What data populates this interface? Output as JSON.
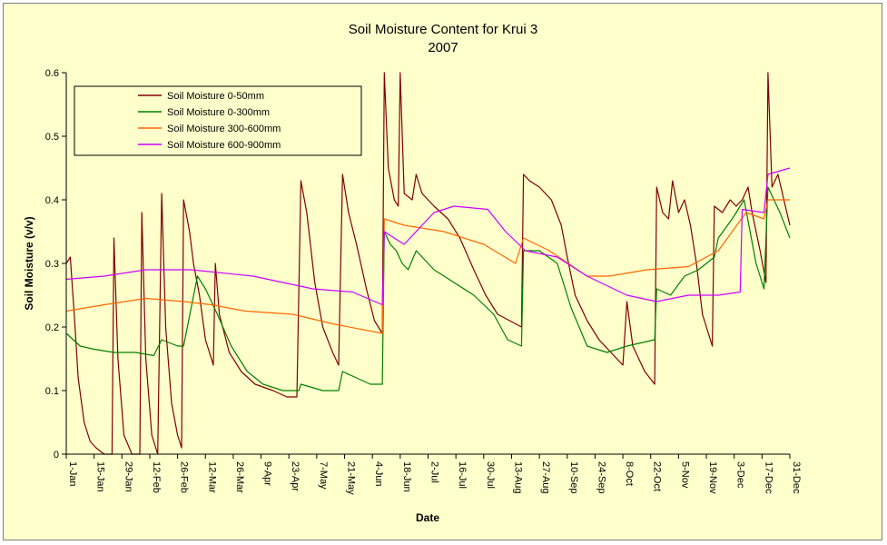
{
  "chart_data": {
    "type": "line",
    "title": "Soil Moisture Content for Krui 3",
    "subtitle": "2007",
    "xlabel": "Date",
    "ylabel": "Soil Moisture (v/v)",
    "ylim": [
      0,
      0.6
    ],
    "yticks": [
      "0",
      "0.1",
      "0.2",
      "0.3",
      "0.4",
      "0.5",
      "0.6"
    ],
    "xlim": [
      "2007-01-01",
      "2007-12-31"
    ],
    "xticks": [
      "1-Jan",
      "15-Jan",
      "29-Jan",
      "12-Feb",
      "26-Feb",
      "12-Mar",
      "26-Mar",
      "9-Apr",
      "23-Apr",
      "7-May",
      "21-May",
      "4-Jun",
      "18-Jun",
      "2-Jul",
      "16-Jul",
      "30-Jul",
      "13-Aug",
      "27-Aug",
      "10-Sep",
      "24-Sep",
      "8-Oct",
      "22-Oct",
      "5-Nov",
      "19-Nov",
      "3-Dec",
      "17-Dec",
      "31-Dec"
    ],
    "grid": false,
    "legend": "top-left",
    "series": [
      {
        "name": "Soil Moisture 0-50mm",
        "color": "#800000",
        "points": [
          [
            "2007-01-01",
            0.3
          ],
          [
            "2007-01-03",
            0.31
          ],
          [
            "2007-01-05",
            0.22
          ],
          [
            "2007-01-07",
            0.12
          ],
          [
            "2007-01-10",
            0.05
          ],
          [
            "2007-01-13",
            0.02
          ],
          [
            "2007-01-16",
            0.01
          ],
          [
            "2007-01-20",
            0.0
          ],
          [
            "2007-01-24",
            0.0
          ],
          [
            "2007-01-25",
            0.34
          ],
          [
            "2007-01-27",
            0.15
          ],
          [
            "2007-01-30",
            0.03
          ],
          [
            "2007-02-03",
            0.0
          ],
          [
            "2007-02-07",
            0.0
          ],
          [
            "2007-02-08",
            0.38
          ],
          [
            "2007-02-10",
            0.15
          ],
          [
            "2007-02-13",
            0.03
          ],
          [
            "2007-02-16",
            0.0
          ],
          [
            "2007-02-18",
            0.41
          ],
          [
            "2007-02-20",
            0.2
          ],
          [
            "2007-02-23",
            0.08
          ],
          [
            "2007-02-26",
            0.03
          ],
          [
            "2007-02-28",
            0.01
          ],
          [
            "2007-03-01",
            0.4
          ],
          [
            "2007-03-04",
            0.35
          ],
          [
            "2007-03-06",
            0.3
          ],
          [
            "2007-03-09",
            0.25
          ],
          [
            "2007-03-12",
            0.18
          ],
          [
            "2007-03-16",
            0.14
          ],
          [
            "2007-03-17",
            0.3
          ],
          [
            "2007-03-19",
            0.22
          ],
          [
            "2007-03-24",
            0.16
          ],
          [
            "2007-03-30",
            0.13
          ],
          [
            "2007-04-06",
            0.11
          ],
          [
            "2007-04-15",
            0.1
          ],
          [
            "2007-04-22",
            0.09
          ],
          [
            "2007-04-27",
            0.09
          ],
          [
            "2007-04-29",
            0.43
          ],
          [
            "2007-05-02",
            0.38
          ],
          [
            "2007-05-06",
            0.27
          ],
          [
            "2007-05-10",
            0.2
          ],
          [
            "2007-05-15",
            0.16
          ],
          [
            "2007-05-18",
            0.14
          ],
          [
            "2007-05-20",
            0.44
          ],
          [
            "2007-05-23",
            0.38
          ],
          [
            "2007-05-27",
            0.33
          ],
          [
            "2007-06-01",
            0.26
          ],
          [
            "2007-06-05",
            0.21
          ],
          [
            "2007-06-09",
            0.19
          ],
          [
            "2007-06-10",
            0.6
          ],
          [
            "2007-06-12",
            0.45
          ],
          [
            "2007-06-15",
            0.4
          ],
          [
            "2007-06-17",
            0.39
          ],
          [
            "2007-06-18",
            0.6
          ],
          [
            "2007-06-20",
            0.41
          ],
          [
            "2007-06-24",
            0.4
          ],
          [
            "2007-06-26",
            0.44
          ],
          [
            "2007-06-29",
            0.41
          ],
          [
            "2007-07-05",
            0.39
          ],
          [
            "2007-07-12",
            0.37
          ],
          [
            "2007-07-18",
            0.34
          ],
          [
            "2007-07-25",
            0.29
          ],
          [
            "2007-07-31",
            0.25
          ],
          [
            "2007-08-06",
            0.22
          ],
          [
            "2007-08-12",
            0.21
          ],
          [
            "2007-08-18",
            0.2
          ],
          [
            "2007-08-19",
            0.44
          ],
          [
            "2007-08-22",
            0.43
          ],
          [
            "2007-08-27",
            0.42
          ],
          [
            "2007-09-02",
            0.4
          ],
          [
            "2007-09-07",
            0.36
          ],
          [
            "2007-09-10",
            0.31
          ],
          [
            "2007-09-14",
            0.25
          ],
          [
            "2007-09-20",
            0.21
          ],
          [
            "2007-09-26",
            0.18
          ],
          [
            "2007-10-02",
            0.16
          ],
          [
            "2007-10-08",
            0.14
          ],
          [
            "2007-10-10",
            0.24
          ],
          [
            "2007-10-13",
            0.17
          ],
          [
            "2007-10-19",
            0.13
          ],
          [
            "2007-10-24",
            0.11
          ],
          [
            "2007-10-25",
            0.42
          ],
          [
            "2007-10-28",
            0.38
          ],
          [
            "2007-10-31",
            0.37
          ],
          [
            "2007-11-02",
            0.43
          ],
          [
            "2007-11-05",
            0.38
          ],
          [
            "2007-11-08",
            0.4
          ],
          [
            "2007-11-11",
            0.36
          ],
          [
            "2007-11-14",
            0.3
          ],
          [
            "2007-11-17",
            0.22
          ],
          [
            "2007-11-22",
            0.17
          ],
          [
            "2007-11-23",
            0.39
          ],
          [
            "2007-11-27",
            0.38
          ],
          [
            "2007-12-01",
            0.4
          ],
          [
            "2007-12-04",
            0.39
          ],
          [
            "2007-12-07",
            0.4
          ],
          [
            "2007-12-10",
            0.42
          ],
          [
            "2007-12-12",
            0.38
          ],
          [
            "2007-12-16",
            0.32
          ],
          [
            "2007-12-19",
            0.27
          ],
          [
            "2007-12-20",
            0.6
          ],
          [
            "2007-12-22",
            0.42
          ],
          [
            "2007-12-25",
            0.44
          ],
          [
            "2007-12-28",
            0.4
          ],
          [
            "2007-12-31",
            0.36
          ]
        ]
      },
      {
        "name": "Soil Moisture 0-300mm",
        "color": "#008000",
        "points": [
          [
            "2007-01-01",
            0.19
          ],
          [
            "2007-01-08",
            0.17
          ],
          [
            "2007-01-15",
            0.165
          ],
          [
            "2007-01-25",
            0.16
          ],
          [
            "2007-02-05",
            0.16
          ],
          [
            "2007-02-14",
            0.155
          ],
          [
            "2007-02-18",
            0.18
          ],
          [
            "2007-02-26",
            0.17
          ],
          [
            "2007-03-01",
            0.17
          ],
          [
            "2007-03-08",
            0.28
          ],
          [
            "2007-03-12",
            0.26
          ],
          [
            "2007-03-18",
            0.22
          ],
          [
            "2007-03-25",
            0.17
          ],
          [
            "2007-04-02",
            0.13
          ],
          [
            "2007-04-10",
            0.11
          ],
          [
            "2007-04-20",
            0.1
          ],
          [
            "2007-04-28",
            0.1
          ],
          [
            "2007-04-29",
            0.11
          ],
          [
            "2007-05-10",
            0.1
          ],
          [
            "2007-05-18",
            0.1
          ],
          [
            "2007-05-20",
            0.13
          ],
          [
            "2007-05-27",
            0.12
          ],
          [
            "2007-06-03",
            0.11
          ],
          [
            "2007-06-09",
            0.11
          ],
          [
            "2007-06-10",
            0.35
          ],
          [
            "2007-06-13",
            0.33
          ],
          [
            "2007-06-16",
            0.32
          ],
          [
            "2007-06-19",
            0.3
          ],
          [
            "2007-06-22",
            0.29
          ],
          [
            "2007-06-26",
            0.32
          ],
          [
            "2007-07-05",
            0.29
          ],
          [
            "2007-07-15",
            0.27
          ],
          [
            "2007-07-25",
            0.25
          ],
          [
            "2007-08-04",
            0.22
          ],
          [
            "2007-08-11",
            0.18
          ],
          [
            "2007-08-18",
            0.17
          ],
          [
            "2007-08-19",
            0.32
          ],
          [
            "2007-08-27",
            0.32
          ],
          [
            "2007-09-05",
            0.3
          ],
          [
            "2007-09-12",
            0.23
          ],
          [
            "2007-09-20",
            0.17
          ],
          [
            "2007-09-30",
            0.16
          ],
          [
            "2007-10-10",
            0.17
          ],
          [
            "2007-10-24",
            0.18
          ],
          [
            "2007-10-25",
            0.26
          ],
          [
            "2007-11-01",
            0.25
          ],
          [
            "2007-11-08",
            0.28
          ],
          [
            "2007-11-15",
            0.29
          ],
          [
            "2007-11-23",
            0.31
          ],
          [
            "2007-11-25",
            0.34
          ],
          [
            "2007-12-02",
            0.37
          ],
          [
            "2007-12-08",
            0.4
          ],
          [
            "2007-12-14",
            0.3
          ],
          [
            "2007-12-18",
            0.26
          ],
          [
            "2007-12-20",
            0.42
          ],
          [
            "2007-12-26",
            0.38
          ],
          [
            "2007-12-31",
            0.34
          ]
        ]
      },
      {
        "name": "Soil Moisture 300-600mm",
        "color": "#ff6600",
        "points": [
          [
            "2007-01-01",
            0.225
          ],
          [
            "2007-01-20",
            0.235
          ],
          [
            "2007-02-10",
            0.245
          ],
          [
            "2007-03-01",
            0.24
          ],
          [
            "2007-03-15",
            0.235
          ],
          [
            "2007-04-01",
            0.225
          ],
          [
            "2007-04-25",
            0.22
          ],
          [
            "2007-05-15",
            0.205
          ],
          [
            "2007-06-09",
            0.19
          ],
          [
            "2007-06-10",
            0.37
          ],
          [
            "2007-06-20",
            0.36
          ],
          [
            "2007-07-10",
            0.35
          ],
          [
            "2007-07-30",
            0.33
          ],
          [
            "2007-08-15",
            0.3
          ],
          [
            "2007-08-19",
            0.34
          ],
          [
            "2007-09-01",
            0.32
          ],
          [
            "2007-09-20",
            0.28
          ],
          [
            "2007-10-01",
            0.28
          ],
          [
            "2007-10-20",
            0.29
          ],
          [
            "2007-11-10",
            0.295
          ],
          [
            "2007-11-25",
            0.32
          ],
          [
            "2007-12-09",
            0.38
          ],
          [
            "2007-12-18",
            0.37
          ],
          [
            "2007-12-20",
            0.4
          ],
          [
            "2007-12-31",
            0.4
          ]
        ]
      },
      {
        "name": "Soil Moisture 600-900mm",
        "color": "#cc00ff",
        "points": [
          [
            "2007-01-01",
            0.275
          ],
          [
            "2007-01-20",
            0.28
          ],
          [
            "2007-02-10",
            0.29
          ],
          [
            "2007-03-05",
            0.29
          ],
          [
            "2007-04-05",
            0.28
          ],
          [
            "2007-05-05",
            0.26
          ],
          [
            "2007-05-25",
            0.255
          ],
          [
            "2007-06-09",
            0.235
          ],
          [
            "2007-06-10",
            0.35
          ],
          [
            "2007-06-20",
            0.33
          ],
          [
            "2007-07-05",
            0.38
          ],
          [
            "2007-07-15",
            0.39
          ],
          [
            "2007-08-01",
            0.385
          ],
          [
            "2007-08-10",
            0.35
          ],
          [
            "2007-08-20",
            0.32
          ],
          [
            "2007-09-05",
            0.31
          ],
          [
            "2007-09-20",
            0.28
          ],
          [
            "2007-10-10",
            0.25
          ],
          [
            "2007-10-25",
            0.24
          ],
          [
            "2007-11-10",
            0.25
          ],
          [
            "2007-11-25",
            0.25
          ],
          [
            "2007-12-06",
            0.255
          ],
          [
            "2007-12-07",
            0.385
          ],
          [
            "2007-12-18",
            0.38
          ],
          [
            "2007-12-20",
            0.44
          ],
          [
            "2007-12-31",
            0.45
          ]
        ]
      }
    ]
  }
}
